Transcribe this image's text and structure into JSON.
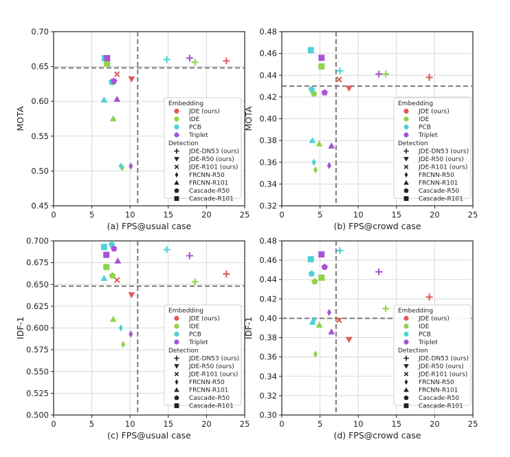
{
  "colors": {
    "JDE (ours)": "#e05b57",
    "IDE": "#8fd448",
    "PCB": "#4fd1d9",
    "Triplet": "#a654d6"
  },
  "legend": {
    "embedding_title": "Embedding",
    "embedding_items": [
      "JDE (ours)",
      "IDE",
      "PCB",
      "Triplet"
    ],
    "detection_title": "Detection",
    "detection_items": [
      {
        "label": "JDE-DN53 (ours)",
        "marker": "plus"
      },
      {
        "label": "JDE-R50 (ours)",
        "marker": "triangle-down"
      },
      {
        "label": "JDE-R101 (ours)",
        "marker": "x"
      },
      {
        "label": "FRCNN-R50",
        "marker": "diamond"
      },
      {
        "label": "FRCNN-R101",
        "marker": "triangle-up"
      },
      {
        "label": "Cascade-R50",
        "marker": "pentagon"
      },
      {
        "label": "Cascade-R101",
        "marker": "square"
      }
    ]
  },
  "chart_data": [
    {
      "type": "scatter",
      "xlabel": "(a) FPS@usual case",
      "ylabel": "MOTA",
      "xlim": [
        0,
        25
      ],
      "ylim": [
        0.45,
        0.7
      ],
      "xticks": [
        "0",
        "5",
        "10",
        "15",
        "20",
        "25"
      ],
      "yticks": [
        "0.45",
        "0.50",
        "0.55",
        "0.60",
        "0.65",
        "0.70"
      ],
      "hline": 0.648,
      "vline": 11.0,
      "points": [
        {
          "x": 22.6,
          "y": 0.658,
          "embedding": "JDE (ours)",
          "detection": "JDE-DN53 (ours)"
        },
        {
          "x": 10.2,
          "y": 0.632,
          "embedding": "JDE (ours)",
          "detection": "JDE-R50 (ours)"
        },
        {
          "x": 8.3,
          "y": 0.639,
          "embedding": "JDE (ours)",
          "detection": "JDE-R101 (ours)"
        },
        {
          "x": 18.5,
          "y": 0.656,
          "embedding": "IDE",
          "detection": "JDE-DN53 (ours)"
        },
        {
          "x": 7.7,
          "y": 0.627,
          "embedding": "IDE",
          "detection": "Cascade-R50"
        },
        {
          "x": 7.0,
          "y": 0.654,
          "embedding": "IDE",
          "detection": "Cascade-R101"
        },
        {
          "x": 7.8,
          "y": 0.575,
          "embedding": "IDE",
          "detection": "FRCNN-R101"
        },
        {
          "x": 9.0,
          "y": 0.505,
          "embedding": "IDE",
          "detection": "FRCNN-R50"
        },
        {
          "x": 14.8,
          "y": 0.66,
          "embedding": "PCB",
          "detection": "JDE-DN53 (ours)"
        },
        {
          "x": 6.7,
          "y": 0.662,
          "embedding": "PCB",
          "detection": "Cascade-R101"
        },
        {
          "x": 7.6,
          "y": 0.628,
          "embedding": "PCB",
          "detection": "Cascade-R50"
        },
        {
          "x": 6.6,
          "y": 0.602,
          "embedding": "PCB",
          "detection": "FRCNN-R101"
        },
        {
          "x": 8.8,
          "y": 0.507,
          "embedding": "PCB",
          "detection": "FRCNN-R50"
        },
        {
          "x": 17.8,
          "y": 0.662,
          "embedding": "Triplet",
          "detection": "JDE-DN53 (ours)"
        },
        {
          "x": 7.0,
          "y": 0.662,
          "embedding": "Triplet",
          "detection": "Cascade-R101"
        },
        {
          "x": 7.9,
          "y": 0.629,
          "embedding": "Triplet",
          "detection": "Cascade-R50"
        },
        {
          "x": 8.3,
          "y": 0.603,
          "embedding": "Triplet",
          "detection": "FRCNN-R101"
        },
        {
          "x": 10.1,
          "y": 0.507,
          "embedding": "Triplet",
          "detection": "FRCNN-R50"
        }
      ]
    },
    {
      "type": "scatter",
      "xlabel": "(b) FPS@crowd case",
      "ylabel": "MOTA",
      "xlim": [
        0,
        25
      ],
      "ylim": [
        0.32,
        0.48
      ],
      "xticks": [
        "0",
        "5",
        "10",
        "15",
        "20",
        "25"
      ],
      "yticks": [
        "0.32",
        "0.34",
        "0.36",
        "0.38",
        "0.40",
        "0.42",
        "0.44",
        "0.46",
        "0.48"
      ],
      "hline": 0.43,
      "vline": 7.1,
      "points": [
        {
          "x": 19.3,
          "y": 0.438,
          "embedding": "JDE (ours)",
          "detection": "JDE-DN53 (ours)"
        },
        {
          "x": 8.8,
          "y": 0.428,
          "embedding": "JDE (ours)",
          "detection": "JDE-R50 (ours)"
        },
        {
          "x": 7.5,
          "y": 0.436,
          "embedding": "JDE (ours)",
          "detection": "JDE-R101 (ours)"
        },
        {
          "x": 13.6,
          "y": 0.441,
          "embedding": "IDE",
          "detection": "JDE-DN53 (ours)"
        },
        {
          "x": 5.2,
          "y": 0.448,
          "embedding": "IDE",
          "detection": "Cascade-R101"
        },
        {
          "x": 4.2,
          "y": 0.423,
          "embedding": "IDE",
          "detection": "Cascade-R50"
        },
        {
          "x": 4.9,
          "y": 0.377,
          "embedding": "IDE",
          "detection": "FRCNN-R101"
        },
        {
          "x": 4.4,
          "y": 0.353,
          "embedding": "IDE",
          "detection": "FRCNN-R50"
        },
        {
          "x": 7.6,
          "y": 0.444,
          "embedding": "PCB",
          "detection": "JDE-DN53 (ours)"
        },
        {
          "x": 3.8,
          "y": 0.463,
          "embedding": "PCB",
          "detection": "Cascade-R101"
        },
        {
          "x": 3.9,
          "y": 0.427,
          "embedding": "PCB",
          "detection": "Cascade-R50"
        },
        {
          "x": 4.0,
          "y": 0.38,
          "embedding": "PCB",
          "detection": "FRCNN-R101"
        },
        {
          "x": 4.2,
          "y": 0.36,
          "embedding": "PCB",
          "detection": "FRCNN-R50"
        },
        {
          "x": 12.7,
          "y": 0.441,
          "embedding": "Triplet",
          "detection": "JDE-DN53 (ours)"
        },
        {
          "x": 5.2,
          "y": 0.456,
          "embedding": "Triplet",
          "detection": "Cascade-R101"
        },
        {
          "x": 5.6,
          "y": 0.424,
          "embedding": "Triplet",
          "detection": "Cascade-R50"
        },
        {
          "x": 6.5,
          "y": 0.375,
          "embedding": "Triplet",
          "detection": "FRCNN-R101"
        },
        {
          "x": 6.2,
          "y": 0.357,
          "embedding": "Triplet",
          "detection": "FRCNN-R50"
        }
      ]
    },
    {
      "type": "scatter",
      "xlabel": "(c) FPS@usual case",
      "ylabel": "IDF-1",
      "xlim": [
        0,
        25
      ],
      "ylim": [
        0.5,
        0.7
      ],
      "xticks": [
        "0",
        "5",
        "10",
        "15",
        "20",
        "25"
      ],
      "yticks": [
        "0.500",
        "0.525",
        "0.550",
        "0.575",
        "0.600",
        "0.625",
        "0.650",
        "0.675",
        "0.700"
      ],
      "hline": 0.648,
      "vline": 11.0,
      "points": [
        {
          "x": 22.6,
          "y": 0.662,
          "embedding": "JDE (ours)",
          "detection": "JDE-DN53 (ours)"
        },
        {
          "x": 10.2,
          "y": 0.638,
          "embedding": "JDE (ours)",
          "detection": "JDE-R50 (ours)"
        },
        {
          "x": 8.3,
          "y": 0.655,
          "embedding": "JDE (ours)",
          "detection": "JDE-R101 (ours)"
        },
        {
          "x": 18.5,
          "y": 0.653,
          "embedding": "IDE",
          "detection": "JDE-DN53 (ours)"
        },
        {
          "x": 6.9,
          "y": 0.67,
          "embedding": "IDE",
          "detection": "Cascade-R101"
        },
        {
          "x": 7.7,
          "y": 0.66,
          "embedding": "IDE",
          "detection": "Cascade-R50"
        },
        {
          "x": 7.8,
          "y": 0.61,
          "embedding": "IDE",
          "detection": "FRCNN-R101"
        },
        {
          "x": 9.1,
          "y": 0.581,
          "embedding": "IDE",
          "detection": "FRCNN-R50"
        },
        {
          "x": 14.8,
          "y": 0.69,
          "embedding": "PCB",
          "detection": "JDE-DN53 (ours)"
        },
        {
          "x": 6.6,
          "y": 0.693,
          "embedding": "PCB",
          "detection": "Cascade-R101"
        },
        {
          "x": 7.6,
          "y": 0.696,
          "embedding": "PCB",
          "detection": "Cascade-R50"
        },
        {
          "x": 6.6,
          "y": 0.657,
          "embedding": "PCB",
          "detection": "FRCNN-R101"
        },
        {
          "x": 8.8,
          "y": 0.6,
          "embedding": "PCB",
          "detection": "FRCNN-R50"
        },
        {
          "x": 17.8,
          "y": 0.683,
          "embedding": "Triplet",
          "detection": "JDE-DN53 (ours)"
        },
        {
          "x": 6.9,
          "y": 0.684,
          "embedding": "Triplet",
          "detection": "Cascade-R101"
        },
        {
          "x": 7.9,
          "y": 0.691,
          "embedding": "Triplet",
          "detection": "Cascade-R50"
        },
        {
          "x": 8.4,
          "y": 0.677,
          "embedding": "Triplet",
          "detection": "FRCNN-R101"
        },
        {
          "x": 10.1,
          "y": 0.593,
          "embedding": "Triplet",
          "detection": "FRCNN-R50"
        }
      ]
    },
    {
      "type": "scatter",
      "xlabel": "(d) FPS@crowd case",
      "ylabel": "IDF-1",
      "xlim": [
        0,
        25
      ],
      "ylim": [
        0.3,
        0.48
      ],
      "xticks": [
        "0",
        "5",
        "10",
        "15",
        "20",
        "25"
      ],
      "yticks": [
        "0.30",
        "0.32",
        "0.34",
        "0.36",
        "0.38",
        "0.40",
        "0.42",
        "0.44",
        "0.46",
        "0.48"
      ],
      "hline": 0.4,
      "vline": 7.1,
      "points": [
        {
          "x": 19.3,
          "y": 0.422,
          "embedding": "JDE (ours)",
          "detection": "JDE-DN53 (ours)"
        },
        {
          "x": 8.8,
          "y": 0.378,
          "embedding": "JDE (ours)",
          "detection": "JDE-R50 (ours)"
        },
        {
          "x": 7.5,
          "y": 0.398,
          "embedding": "JDE (ours)",
          "detection": "JDE-R101 (ours)"
        },
        {
          "x": 13.6,
          "y": 0.41,
          "embedding": "IDE",
          "detection": "JDE-DN53 (ours)"
        },
        {
          "x": 5.2,
          "y": 0.442,
          "embedding": "IDE",
          "detection": "Cascade-R101"
        },
        {
          "x": 4.3,
          "y": 0.438,
          "embedding": "IDE",
          "detection": "Cascade-R50"
        },
        {
          "x": 4.9,
          "y": 0.393,
          "embedding": "IDE",
          "detection": "FRCNN-R101"
        },
        {
          "x": 4.4,
          "y": 0.363,
          "embedding": "IDE",
          "detection": "FRCNN-R50"
        },
        {
          "x": 7.6,
          "y": 0.47,
          "embedding": "PCB",
          "detection": "JDE-DN53 (ours)"
        },
        {
          "x": 3.8,
          "y": 0.461,
          "embedding": "PCB",
          "detection": "Cascade-R101"
        },
        {
          "x": 3.9,
          "y": 0.446,
          "embedding": "PCB",
          "detection": "Cascade-R50"
        },
        {
          "x": 4.0,
          "y": 0.396,
          "embedding": "PCB",
          "detection": "FRCNN-R101"
        },
        {
          "x": 4.2,
          "y": 0.398,
          "embedding": "PCB",
          "detection": "FRCNN-R50"
        },
        {
          "x": 12.7,
          "y": 0.448,
          "embedding": "Triplet",
          "detection": "JDE-DN53 (ours)"
        },
        {
          "x": 5.2,
          "y": 0.466,
          "embedding": "Triplet",
          "detection": "Cascade-R101"
        },
        {
          "x": 5.6,
          "y": 0.453,
          "embedding": "Triplet",
          "detection": "Cascade-R50"
        },
        {
          "x": 6.5,
          "y": 0.386,
          "embedding": "Triplet",
          "detection": "FRCNN-R101"
        },
        {
          "x": 6.2,
          "y": 0.406,
          "embedding": "Triplet",
          "detection": "FRCNN-R50"
        }
      ]
    }
  ]
}
